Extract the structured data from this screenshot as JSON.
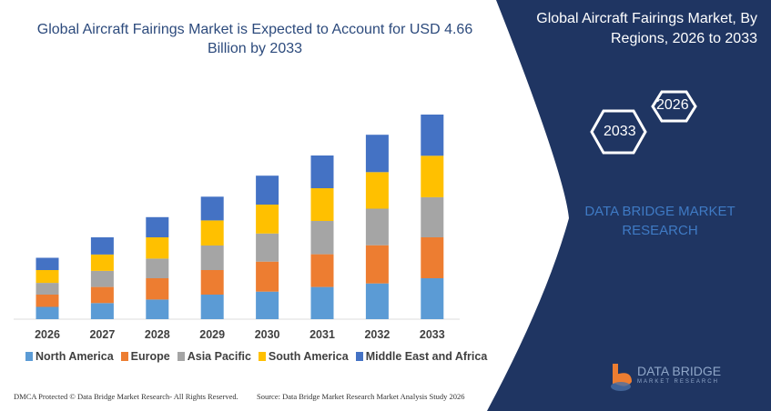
{
  "header": {
    "title": "Global Aircraft Fairings Market is Expected to Account for USD 4.66 Billion by 2033",
    "right_title": "Global Aircraft Fairings Market, By Regions, 2026 to 2033",
    "hex_start": "2026",
    "hex_end": "2033",
    "brand_text": "DATA BRIDGE MARKET RESEARCH"
  },
  "logo": {
    "name": "DATA BRIDGE",
    "sub": "MARKET RESEARCH"
  },
  "footer": {
    "dmca": "DMCA Protected © Data Bridge Market Research-  All Rights Reserved.",
    "source": "Source: Data Bridge Market Research  Market Analysis Study 2026"
  },
  "colors": {
    "panel": "#1f3562",
    "title": "#2c4a7c"
  },
  "chart_data": {
    "type": "bar",
    "stacked": true,
    "title": "Global Aircraft Fairings Market is Expected to Account for USD 4.66 Billion by 2033",
    "xlabel": "",
    "ylabel": "",
    "categories": [
      "2026",
      "2027",
      "2028",
      "2029",
      "2030",
      "2031",
      "2032",
      "2033"
    ],
    "series": [
      {
        "name": "North America",
        "color": "#5b9bd5",
        "values": [
          0.45,
          0.59,
          0.72,
          0.9,
          1.01,
          1.18,
          1.31,
          1.5
        ]
      },
      {
        "name": "Europe",
        "color": "#ed7d31",
        "values": [
          0.45,
          0.59,
          0.78,
          0.9,
          1.1,
          1.2,
          1.4,
          1.5
        ]
      },
      {
        "name": "Asia Pacific",
        "color": "#a5a5a5",
        "values": [
          0.43,
          0.59,
          0.72,
          0.9,
          1.03,
          1.22,
          1.34,
          1.47
        ]
      },
      {
        "name": "South America",
        "color": "#ffc000",
        "values": [
          0.47,
          0.6,
          0.78,
          0.92,
          1.06,
          1.2,
          1.34,
          1.52
        ]
      },
      {
        "name": "Middle East and Africa",
        "color": "#4472c4",
        "values": [
          0.45,
          0.63,
          0.74,
          0.87,
          1.06,
          1.2,
          1.37,
          1.51
        ]
      }
    ],
    "ylim": [
      0,
      7.5
    ],
    "grid": false,
    "legend": "bottom"
  }
}
